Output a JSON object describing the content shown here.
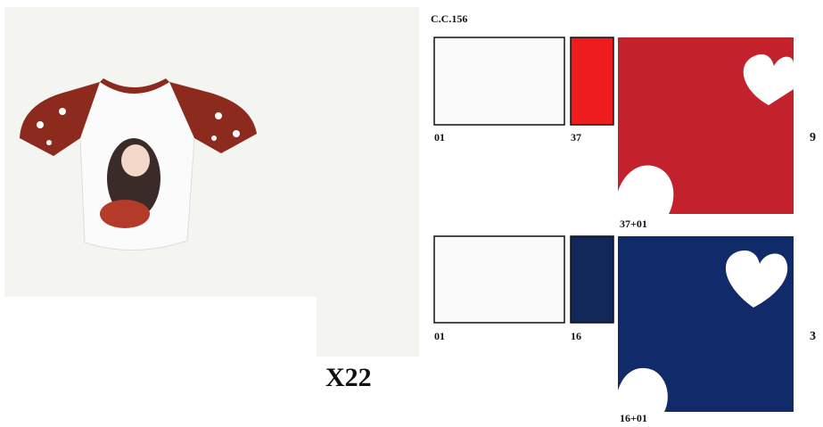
{
  "header": {
    "code": "C.C.156"
  },
  "model": "X22",
  "rows": [
    {
      "swatches": [
        {
          "label": "01"
        },
        {
          "label": "37"
        }
      ],
      "combo": "37+01",
      "quantity": "9"
    },
    {
      "swatches": [
        {
          "label": "01"
        },
        {
          "label": "16"
        }
      ],
      "combo": "16+01",
      "quantity": "3"
    }
  ]
}
